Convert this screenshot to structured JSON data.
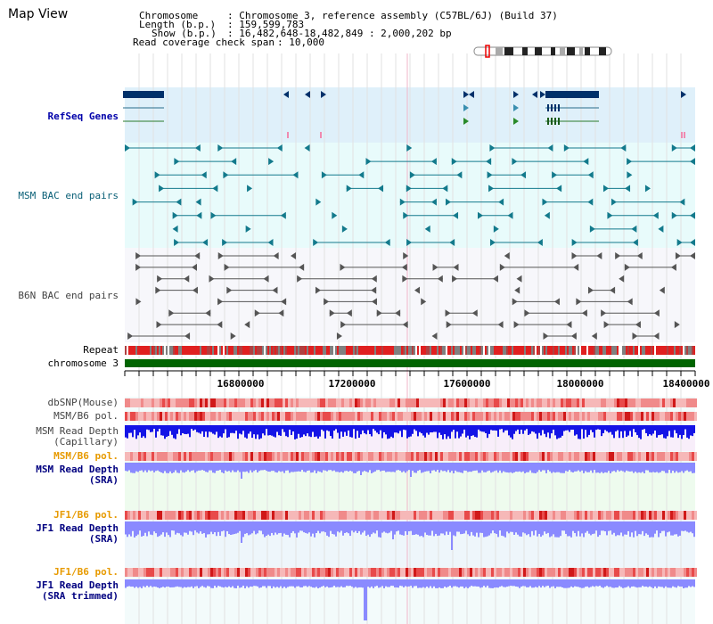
{
  "title": "Map View",
  "info": {
    "chromosome_key": "Chromosome",
    "chromosome_val": ": Chromosome 3, reference assembly (C57BL/6J) (Build 37)",
    "length_key": "Length (b.p.)",
    "length_val": ": 159,599,783",
    "show_key": "Show (b.p.)",
    "show_val": ": 16,482,648-18,482,849 : 2,000,202 bp",
    "span_key": "Read coverage check span",
    "span_val": ": 10,000"
  },
  "tracks": {
    "refseq": "RefSeq Genes",
    "msm_bac": "MSM BAC end pairs",
    "b6n_bac": "B6N BAC end pairs",
    "repeat": "Repeat",
    "chromosome": "chromosome 3",
    "dbsnp": "dbSNP(Mouse)",
    "msm_b6_pol_1": "MSM/B6 pol.",
    "msm_depth_cap_1": "MSM Read Depth",
    "msm_depth_cap_2": "(Capillary)",
    "msm_b6_pol_2": "MSM/B6 pol.",
    "msm_depth_sra_1": "MSM Read Depth",
    "msm_depth_sra_2": "(SRA)",
    "jf1_b6_pol_1": "JF1/B6 pol.",
    "jf1_depth_sra_1": "JF1 Read Depth",
    "jf1_depth_sra_2": "(SRA)",
    "jf1_b6_pol_2": "JF1/B6 pol.",
    "jf1_depth_trim_1": "JF1 Read Depth",
    "jf1_depth_trim_2": "(SRA trimmed)"
  },
  "axis": {
    "ticks": [
      "16800000",
      "17200000",
      "17600000",
      "18000000",
      "18400000"
    ]
  },
  "colors": {
    "refseq_bg": "#dff0fa",
    "msm_bg": "#e8fbfb",
    "b6n_bg": "#f7f7fb",
    "chromosome_bar": "#006400",
    "gene": "#00306a",
    "msm_feature": "#137a8c",
    "b6n_feature": "#555555",
    "polymorphism": "#e83030",
    "depth_capillary": "#1414e6",
    "depth_sra": "#8a8aff"
  }
}
